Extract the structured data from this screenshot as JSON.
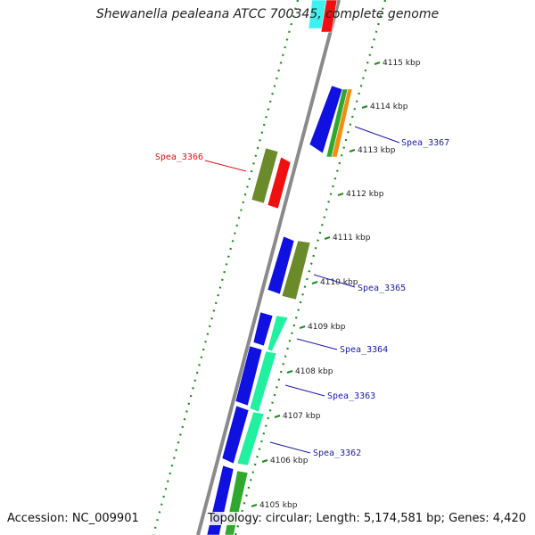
{
  "title": "Shewanella pealeana ATCC 700345, complete genome",
  "footer": {
    "accession": "Accession: NC_009901",
    "summary": "Topology: circular; Length: 5,174,581 bp; Genes: 4,420"
  },
  "colors": {
    "backbone": "#8a8a8a",
    "dotted_ring": "#1e8a1e",
    "label_blue": "#1a1aa8",
    "label_red": "#dd1111",
    "gene_blue": "#1010e0",
    "gene_olive": "#6b8a2a",
    "gene_red": "#f01010",
    "gene_green": "#2fa82f",
    "gene_orange": "#f09010",
    "gene_mint": "#20f0a0",
    "gene_cyan": "#40f0f0"
  },
  "ticks": [
    "4115 kbp",
    "4114 kbp",
    "4113 kbp",
    "4112 kbp",
    "4111 kbp",
    "4110 kbp",
    "4109 kbp",
    "4108 kbp",
    "4107 kbp",
    "4106 kbp",
    "4105 kbp"
  ],
  "gene_labels": [
    {
      "text": "Spea_3367",
      "color": "blue"
    },
    {
      "text": "Spea_3366",
      "color": "red"
    },
    {
      "text": "Spea_3365",
      "color": "blue"
    },
    {
      "text": "Spea_3364",
      "color": "blue"
    },
    {
      "text": "Spea_3363",
      "color": "blue"
    },
    {
      "text": "Spea_3362",
      "color": "blue"
    }
  ]
}
